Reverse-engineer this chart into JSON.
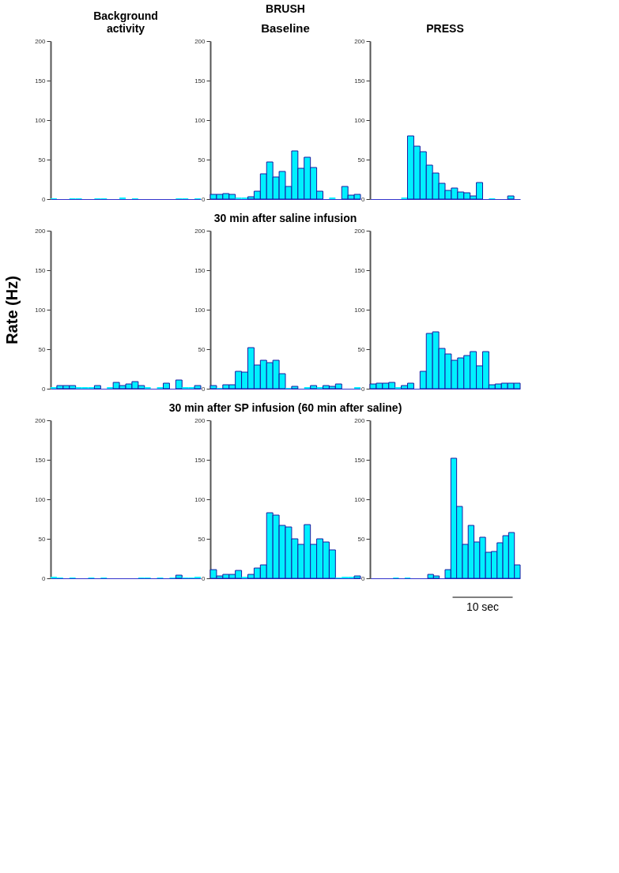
{
  "chart_data": [
    {
      "type": "bar",
      "title": [
        "Background",
        "activity"
      ],
      "categories": [
        null,
        null,
        null,
        null,
        null,
        null,
        null,
        null,
        null,
        null,
        null,
        null,
        null,
        null,
        null,
        null,
        null,
        null,
        null,
        null,
        null,
        null,
        null,
        null
      ],
      "values": [
        1,
        0,
        0,
        1,
        1,
        0,
        0,
        1,
        1,
        0,
        0,
        2,
        0,
        1,
        0,
        0,
        0,
        0,
        0,
        0,
        1,
        1,
        0,
        1
      ],
      "color": "#00f0ff",
      "ylim": [
        0,
        200
      ],
      "yticks": [
        0,
        50,
        100,
        150,
        200
      ],
      "tick_labels": "y",
      "grid": false
    },
    {
      "type": "bar",
      "title": "BRUSH",
      "subtitle": "Baseline",
      "categories": [
        null,
        null,
        null,
        null,
        null,
        null,
        null,
        null,
        null,
        null,
        null,
        null,
        null,
        null,
        null,
        null,
        null,
        null,
        null,
        null,
        null,
        null,
        null,
        null
      ],
      "values": [
        6,
        6,
        7,
        6,
        2,
        2,
        3,
        10,
        32,
        47,
        28,
        35,
        16,
        61,
        39,
        53,
        40,
        10,
        0,
        2,
        0,
        16,
        5,
        6
      ],
      "color": "#00f0ff",
      "ylim": [
        0,
        200
      ],
      "yticks": [
        0,
        50,
        100,
        150,
        200
      ],
      "tick_labels": "y",
      "grid": false
    },
    {
      "type": "bar",
      "title": "PRESS",
      "categories": [
        null,
        null,
        null,
        null,
        null,
        null,
        null,
        null,
        null,
        null,
        null,
        null,
        null,
        null,
        null,
        null,
        null,
        null,
        null,
        null,
        null,
        null,
        null,
        null
      ],
      "values": [
        0,
        0,
        0,
        0,
        0,
        2,
        80,
        67,
        60,
        43,
        33,
        20,
        11,
        14,
        9,
        8,
        4,
        21,
        0,
        1,
        0,
        0,
        4,
        0
      ],
      "color": "#00f0ff",
      "ylim": [
        0,
        200
      ],
      "yticks": [
        0,
        50,
        100,
        150,
        200
      ],
      "tick_labels": "y",
      "grid": false
    },
    {
      "type": "bar",
      "ylabel": "Rate (Hz)",
      "categories": [
        null,
        null,
        null,
        null,
        null,
        null,
        null,
        null,
        null,
        null,
        null,
        null,
        null,
        null,
        null,
        null,
        null,
        null,
        null,
        null,
        null,
        null,
        null,
        null
      ],
      "values": [
        2,
        4,
        4,
        4,
        2,
        2,
        2,
        4,
        0,
        2,
        8,
        4,
        6,
        9,
        4,
        2,
        0,
        2,
        7,
        0,
        11,
        2,
        2,
        4
      ],
      "color": "#00f0ff",
      "ylim": [
        0,
        200
      ],
      "yticks": [
        0,
        50,
        100,
        150,
        200
      ],
      "tick_labels": "y",
      "grid": false
    },
    {
      "type": "bar",
      "title": "30 min after saline infusion",
      "categories": [
        null,
        null,
        null,
        null,
        null,
        null,
        null,
        null,
        null,
        null,
        null,
        null,
        null,
        null,
        null,
        null,
        null,
        null,
        null,
        null,
        null,
        null,
        null,
        null
      ],
      "values": [
        4,
        1,
        5,
        5,
        22,
        21,
        52,
        30,
        36,
        33,
        36,
        19,
        1,
        3,
        0,
        2,
        4,
        2,
        4,
        3,
        6,
        0,
        0,
        2
      ],
      "color": "#00f0ff",
      "ylim": [
        0,
        200
      ],
      "yticks": [
        0,
        50,
        100,
        150,
        200
      ],
      "tick_labels": "y",
      "grid": false
    },
    {
      "type": "bar",
      "categories": [
        null,
        null,
        null,
        null,
        null,
        null,
        null,
        null,
        null,
        null,
        null,
        null,
        null,
        null,
        null,
        null,
        null,
        null,
        null,
        null,
        null,
        null,
        null,
        null
      ],
      "values": [
        6,
        7,
        7,
        8,
        2,
        4,
        7,
        0,
        22,
        70,
        72,
        51,
        44,
        36,
        39,
        42,
        47,
        29,
        47,
        5,
        6,
        7,
        7,
        7
      ],
      "color": "#00f0ff",
      "ylim": [
        0,
        200
      ],
      "yticks": [
        0,
        50,
        100,
        150,
        200
      ],
      "tick_labels": "y",
      "grid": false
    },
    {
      "type": "bar",
      "categories": [
        null,
        null,
        null,
        null,
        null,
        null,
        null,
        null,
        null,
        null,
        null,
        null,
        null,
        null,
        null,
        null,
        null,
        null,
        null,
        null,
        null,
        null,
        null,
        null
      ],
      "values": [
        2,
        1,
        0,
        1,
        0,
        0,
        1,
        0,
        1,
        0,
        0,
        0,
        0,
        0,
        1,
        1,
        0,
        1,
        0,
        1,
        4,
        1,
        1,
        2
      ],
      "color": "#00f0ff",
      "ylim": [
        0,
        200
      ],
      "yticks": [
        0,
        50,
        100,
        150,
        200
      ],
      "tick_labels": "y",
      "grid": false
    },
    {
      "type": "bar",
      "title": "30 min after SP infusion  (60 min after saline)",
      "categories": [
        null,
        null,
        null,
        null,
        null,
        null,
        null,
        null,
        null,
        null,
        null,
        null,
        null,
        null,
        null,
        null,
        null,
        null,
        null,
        null,
        null,
        null,
        null,
        null
      ],
      "values": [
        11,
        3,
        5,
        5,
        10,
        2,
        5,
        13,
        17,
        83,
        80,
        67,
        65,
        50,
        43,
        68,
        43,
        50,
        46,
        36,
        1,
        2,
        2,
        3
      ],
      "color": "#00f0ff",
      "ylim": [
        0,
        200
      ],
      "yticks": [
        0,
        50,
        100,
        150,
        200
      ],
      "tick_labels": "y",
      "grid": false
    },
    {
      "type": "bar",
      "annotations": [
        "10 sec"
      ],
      "categories": [
        null,
        null,
        null,
        null,
        null,
        null,
        null,
        null,
        null,
        null,
        null,
        null,
        null,
        null,
        null,
        null,
        null,
        null,
        null,
        null,
        null,
        null,
        null,
        null,
        null,
        null
      ],
      "values": [
        0,
        0,
        0,
        0,
        1,
        0,
        1,
        0,
        0,
        0,
        5,
        3,
        0,
        11,
        152,
        91,
        43,
        67,
        46,
        52,
        33,
        34,
        45,
        54,
        58,
        17
      ],
      "color": "#00f0ff",
      "ylim": [
        0,
        200
      ],
      "yticks": [
        0,
        50,
        100,
        150,
        200
      ],
      "tick_labels": "y",
      "grid": false
    }
  ]
}
